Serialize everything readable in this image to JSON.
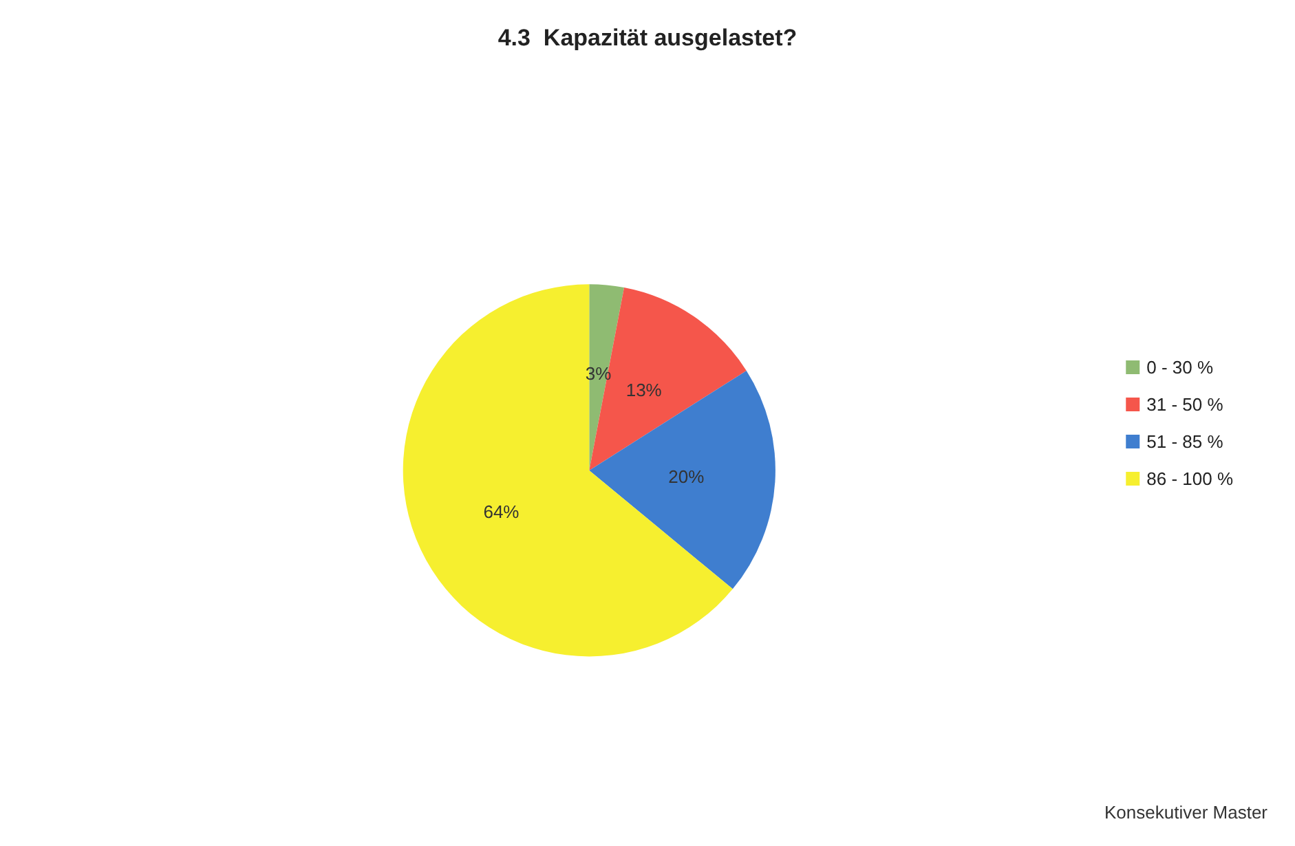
{
  "chart_data": {
    "type": "pie",
    "title": "4.3  Kapazität ausgelastet?",
    "categories": [
      "0 - 30 %",
      "31 - 50 %",
      "51 - 85 %",
      "86 - 100 %"
    ],
    "values": [
      3,
      13,
      20,
      64
    ],
    "value_labels": [
      "3%",
      "13%",
      "20%",
      "64%"
    ],
    "colors": [
      "#8fbb72",
      "#f5564b",
      "#3f7ecf",
      "#f6ef2f"
    ],
    "legend": "right",
    "annotations": [
      "Konsekutiver Master"
    ]
  }
}
